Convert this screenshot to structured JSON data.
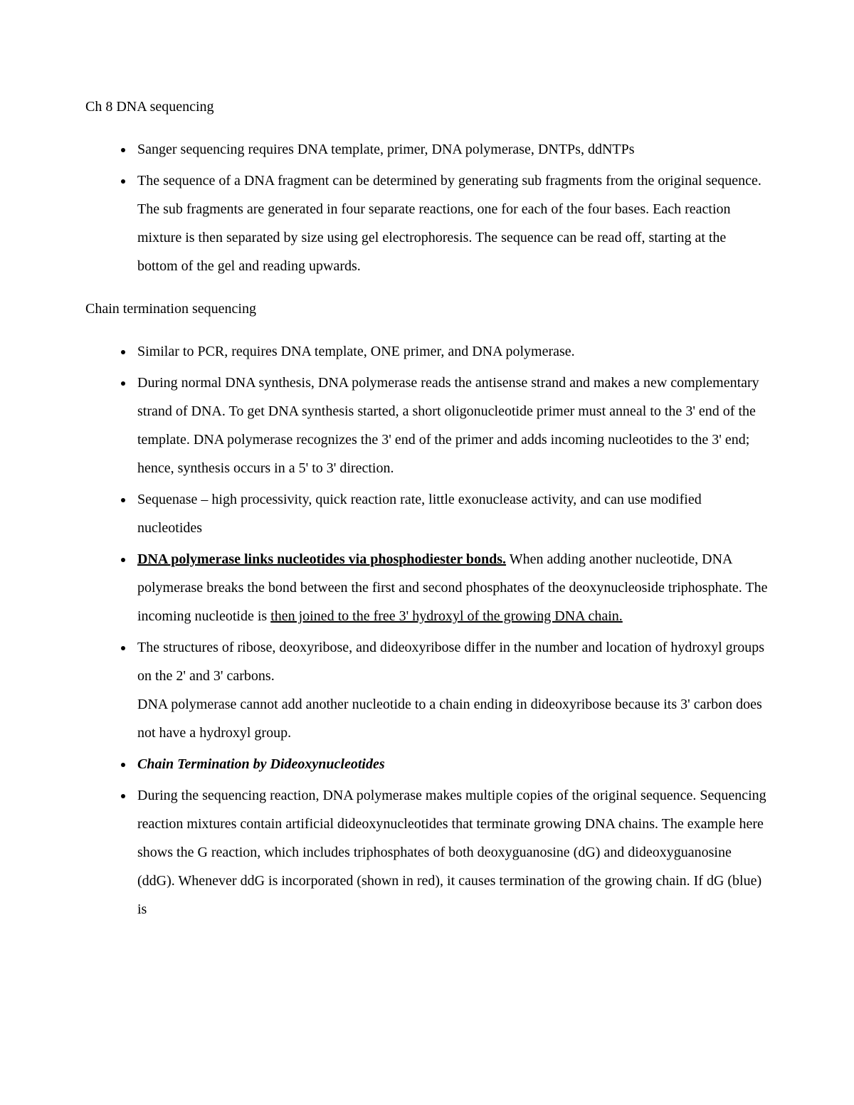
{
  "heading1": "Ch 8 DNA sequencing",
  "list1": {
    "item1": "Sanger sequencing requires DNA template, primer, DNA polymerase, DNTPs, ddNTPs",
    "item2": "The sequence of a DNA fragment can be determined by generating sub fragments from the original sequence. The sub fragments are generated in four separate reactions, one for each of the four bases. Each reaction mixture is then separated by size using gel electrophoresis. The sequence can be read off, starting at the bottom of the gel and reading upwards."
  },
  "heading2": "Chain termination sequencing",
  "list2": {
    "item1": "Similar to PCR, requires DNA template, ONE primer, and DNA polymerase.",
    "item2": "During normal DNA synthesis, DNA polymerase reads the antisense strand and makes a new complementary strand of DNA. To get DNA synthesis started, a short oligonucleotide primer must anneal to the 3' end of the template. DNA polymerase recognizes the 3' end of the primer and adds incoming nucleotides to the 3' end; hence, synthesis occurs in a 5' to 3' direction.",
    "item3": "Sequenase – high processivity, quick reaction rate, little exonuclease activity, and can use modified nucleotides",
    "item4_bold": "DNA polymerase links nucleotides via phosphodiester bonds.",
    "item4_plain1": " When adding another nucleotide, DNA polymerase breaks the bond between the first and second phosphates of the deoxynucleoside triphosphate. The incoming nucleotide is ",
    "item4_underline": "then joined to the free 3' hydroxyl of the growing DNA chain.",
    "item5_line1": "The structures of ribose, deoxyribose, and dideoxyribose differ in the number and location of hydroxyl groups on the 2' and 3' carbons.",
    "item5_line2": "DNA polymerase cannot add another nucleotide to a chain ending in dideoxyribose because its 3' carbon does not have a hydroxyl group.",
    "item6": "Chain Termination by Dideoxynucleotides",
    "item7": "During the sequencing reaction, DNA polymerase makes multiple copies of the original sequence. Sequencing reaction mixtures contain artificial dideoxynucleotides that terminate growing DNA chains. The example here shows the G reaction, which includes triphosphates of both deoxyguanosine (dG) and dideoxyguanosine (ddG). Whenever ddG is incorporated (shown in red), it causes termination of the growing chain. If dG (blue) is"
  }
}
